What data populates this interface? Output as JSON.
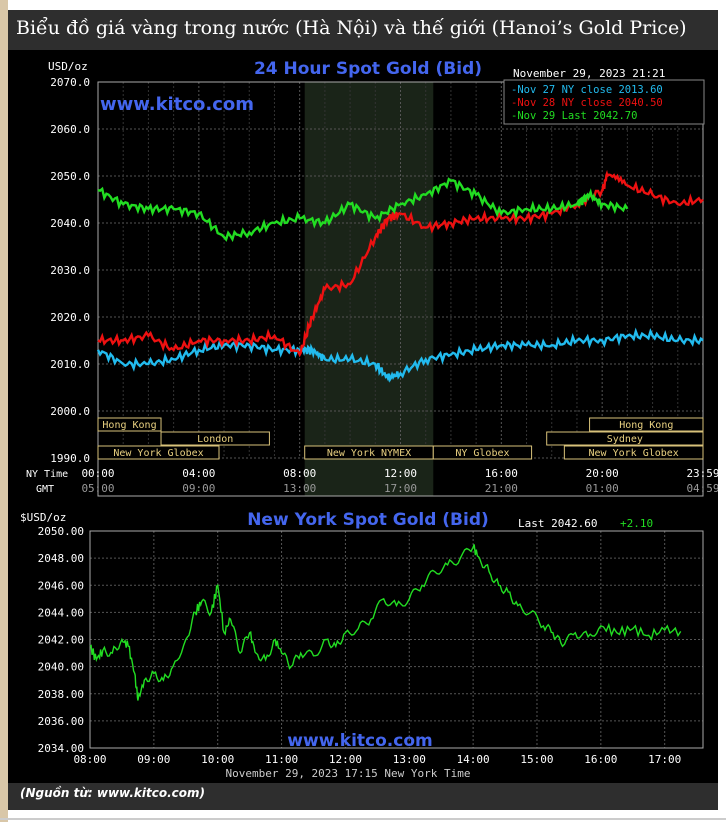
{
  "caption": "Biểu đồ giá vàng trong nước (Hà Nội) và thế giới (Hanoi’s Gold Price)",
  "source": "(Nguồn từ: www.kitco.com)",
  "colors": {
    "blue": "#22bbee",
    "red": "#ee1111",
    "green": "#22dd22",
    "axis": "#ffffff",
    "title": "#4466ee",
    "grid": "#666666",
    "label_bg": "#e8d080"
  },
  "chart_data": [
    {
      "type": "line",
      "title": "24 Hour Spot Gold (Bid)",
      "watermark": "www.kitco.com",
      "unit_label": "USD/oz",
      "timestamp": "November 29, 2023 21:21",
      "ylim": [
        1990,
        2070
      ],
      "y_ticks": [
        "2070.0",
        "2060.0",
        "2050.0",
        "2040.0",
        "2030.0",
        "2020.0",
        "2010.0",
        "2000.0",
        "1990.0"
      ],
      "x_ticks_ny": [
        "00:00",
        "04:00",
        "08:00",
        "12:00",
        "16:00",
        "20:00",
        "23:59"
      ],
      "x_ticks_gmt": [
        "05:00",
        "09:00",
        "13:00",
        "17:00",
        "21:00",
        "01:00",
        "04:59"
      ],
      "row_label_ny": "NY Time",
      "row_label_gmt": "GMT",
      "legend_placement": "top-right",
      "legend": [
        {
          "text": "Nov 27 NY close 2013.60",
          "color": "#22bbee"
        },
        {
          "text": "Nov 28 NY close 2040.50",
          "color": "#ee1111"
        },
        {
          "text": "Nov 29 Last 2042.70",
          "color": "#22dd22"
        }
      ],
      "sessions": {
        "hong_kong": "Hong Kong",
        "london": "London",
        "ny_globex": "New York Globex",
        "ny_nymex": "New York NYMEX",
        "ny_globex_short": "NY Globex",
        "hong_kong_late": "Hong Kong",
        "sydney": "Sydney",
        "ny_globex_late": "New York Globex"
      },
      "series": [
        {
          "name": "Nov 27 NY close 2013.60",
          "color": "#22bbee",
          "x": [
            0,
            1,
            2,
            3,
            4,
            5,
            6,
            7,
            8,
            8.5,
            9,
            10,
            11,
            11.5,
            12,
            13,
            14,
            15,
            16,
            17,
            18,
            19,
            20,
            21,
            22,
            23,
            24
          ],
          "values": [
            2013,
            2010,
            2010,
            2011,
            2013,
            2014,
            2014,
            2013,
            2013,
            2013,
            2011,
            2011,
            2010,
            2007,
            2008,
            2011,
            2012,
            2013,
            2014,
            2014,
            2014,
            2015,
            2015,
            2016,
            2016,
            2015,
            2015
          ]
        },
        {
          "name": "Nov 28 NY close 2040.50",
          "color": "#ee1111",
          "x": [
            0,
            1,
            2,
            3,
            4,
            5,
            6,
            7,
            8,
            8.5,
            9,
            10,
            11,
            11.5,
            12,
            13,
            14,
            15,
            16,
            17,
            18,
            19,
            20,
            20.2,
            21,
            22,
            23,
            24
          ],
          "values": [
            2015,
            2015,
            2016,
            2013,
            2015,
            2015,
            2015,
            2016,
            2012,
            2020,
            2026,
            2027,
            2037,
            2041,
            2042,
            2039,
            2040,
            2041,
            2041,
            2041,
            2042,
            2044,
            2047,
            2050,
            2048,
            2046,
            2044,
            2045
          ]
        },
        {
          "name": "Nov 29 Last 2042.70",
          "color": "#22dd22",
          "x": [
            0,
            1,
            2,
            3,
            4,
            5,
            6,
            7,
            8,
            9,
            10,
            11,
            12,
            13,
            14,
            15,
            16,
            17,
            18,
            19,
            19.5,
            20,
            21
          ],
          "values": [
            2047,
            2044,
            2043,
            2043,
            2042,
            2037,
            2038,
            2040,
            2041,
            2040,
            2044,
            2041,
            2044,
            2046,
            2049,
            2046,
            2042,
            2043,
            2043,
            2044,
            2046,
            2044,
            2043
          ]
        }
      ]
    },
    {
      "type": "line",
      "title": "New York Spot Gold (Bid)",
      "watermark": "www.kitco.com",
      "unit_label": "$USD/oz",
      "last_label": "Last 2042.60",
      "change_label": "+2.10",
      "footer": "November 29, 2023 17:15 New York Time",
      "ylim": [
        2034,
        2050
      ],
      "y_ticks": [
        "2050.00",
        "2048.00",
        "2046.00",
        "2044.00",
        "2042.00",
        "2040.00",
        "2038.00",
        "2036.00",
        "2034.00"
      ],
      "x_ticks": [
        "08:00",
        "09:00",
        "10:00",
        "11:00",
        "12:00",
        "13:00",
        "14:00",
        "15:00",
        "16:00",
        "17:00"
      ],
      "series": [
        {
          "color": "#22dd22",
          "x": [
            8.0,
            8.1,
            8.2,
            8.35,
            8.5,
            8.6,
            8.7,
            8.75,
            8.85,
            9.0,
            9.15,
            9.3,
            9.5,
            9.65,
            9.75,
            9.9,
            10.0,
            10.1,
            10.2,
            10.35,
            10.5,
            10.6,
            10.75,
            10.9,
            11.0,
            11.15,
            11.3,
            11.5,
            11.7,
            11.85,
            12.0,
            12.2,
            12.4,
            12.6,
            12.8,
            13.0,
            13.2,
            13.4,
            13.6,
            13.8,
            14.0,
            14.1,
            14.25,
            14.4,
            14.55,
            14.7,
            14.9,
            15.1,
            15.25,
            15.4,
            15.6,
            15.8,
            16.0,
            16.25,
            16.5,
            16.75,
            17.0,
            17.25
          ],
          "values": [
            2041.5,
            2040.5,
            2041.2,
            2041.0,
            2042.0,
            2041.5,
            2039.5,
            2037.5,
            2039.0,
            2039.5,
            2039.0,
            2040.0,
            2042.0,
            2044.0,
            2044.8,
            2044.0,
            2046.0,
            2042.5,
            2043.5,
            2041.0,
            2042.5,
            2041.0,
            2040.5,
            2042.0,
            2041.0,
            2040.0,
            2041.0,
            2040.8,
            2042.0,
            2041.5,
            2042.5,
            2042.8,
            2043.5,
            2045.0,
            2044.5,
            2045.0,
            2046.0,
            2047.0,
            2047.5,
            2048.0,
            2048.8,
            2048.0,
            2047.0,
            2046.0,
            2045.5,
            2044.5,
            2044.0,
            2043.0,
            2042.5,
            2041.5,
            2042.5,
            2042.2,
            2043.0,
            2042.5,
            2042.8,
            2042.3,
            2042.7,
            2042.6
          ]
        }
      ]
    }
  ]
}
